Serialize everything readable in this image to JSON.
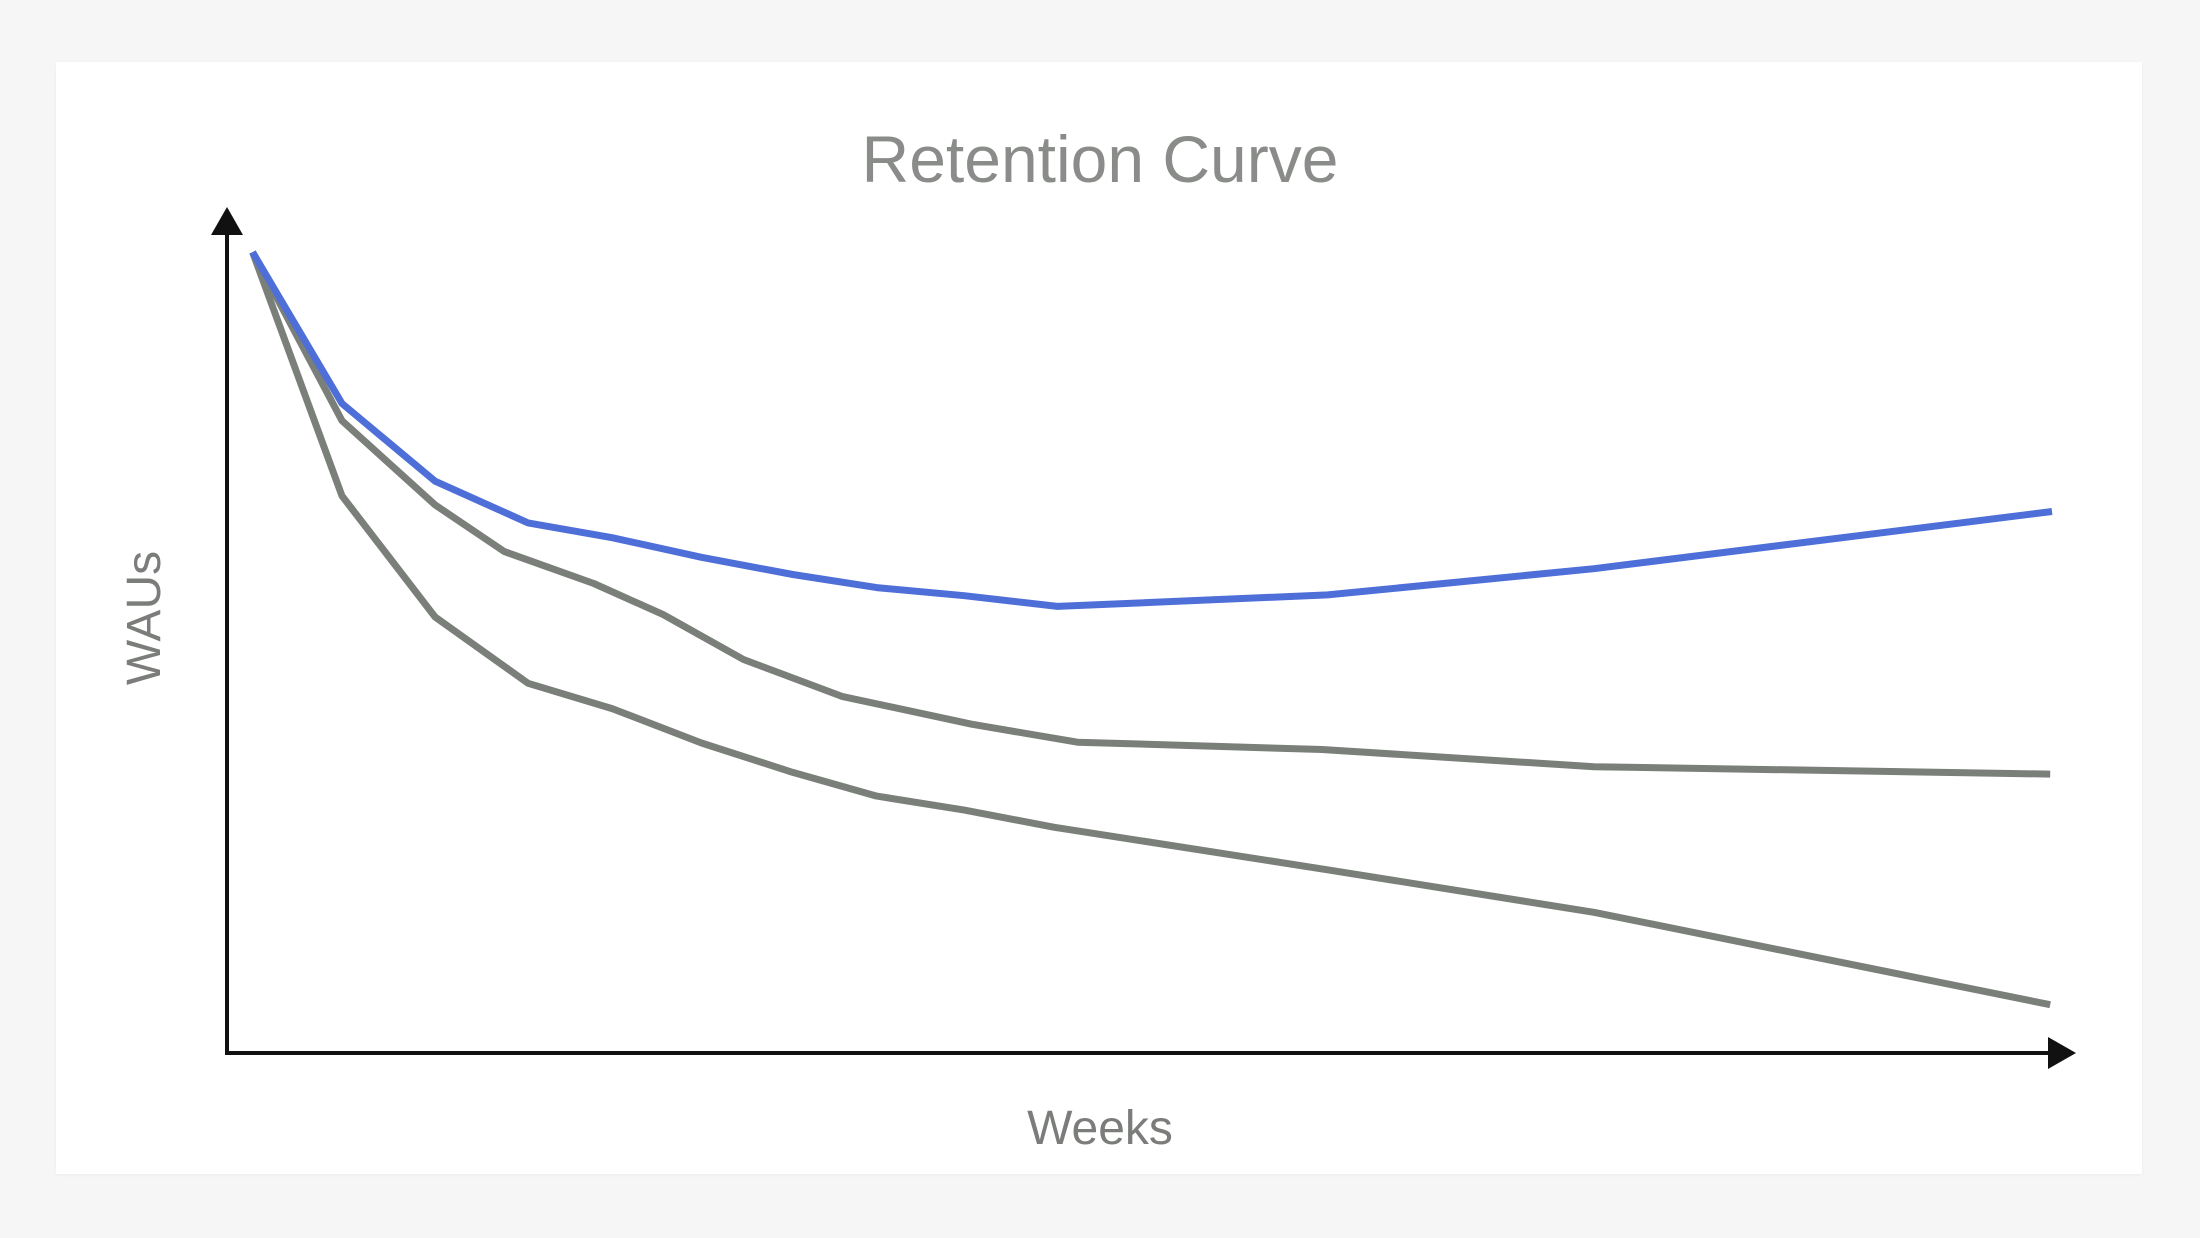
{
  "chart_data": {
    "type": "line",
    "title": "Retention Curve",
    "xlabel": "Weeks",
    "ylabel": "WAUs",
    "xlim": [
      0,
      100
    ],
    "ylim": [
      0,
      100
    ],
    "grid": false,
    "legend": "none",
    "axes_style": "arrows",
    "series": [
      {
        "color": "#4f6fd8",
        "x": [
          1.4,
          6.3,
          11.4,
          16.5,
          21.1,
          26.0,
          31.0,
          35.6,
          40.4,
          45.5,
          60.3,
          74.9,
          100
        ],
        "y": [
          97.9,
          79.4,
          69.9,
          64.8,
          63.0,
          60.6,
          58.5,
          56.9,
          55.9,
          54.6,
          56.0,
          59.2,
          66.2
        ]
      },
      {
        "color": "#7b7f7a",
        "x": [
          1.4,
          6.3,
          11.4,
          15.2,
          20.1,
          23.9,
          28.3,
          33.7,
          40.8,
          46.6,
          60.0,
          74.9,
          99.9
        ],
        "y": [
          97.9,
          77.3,
          67.0,
          61.3,
          57.4,
          53.6,
          48.1,
          43.6,
          40.2,
          38.0,
          37.1,
          35.0,
          34.1
        ]
      },
      {
        "color": "#7b7f7a",
        "x": [
          1.4,
          6.3,
          11.4,
          16.5,
          21.1,
          26.0,
          31.0,
          35.6,
          40.4,
          45.3,
          60.3,
          74.9,
          99.9
        ],
        "y": [
          97.9,
          68.1,
          53.3,
          45.2,
          42.1,
          37.9,
          34.3,
          31.4,
          29.7,
          27.6,
          22.4,
          17.2,
          5.9
        ]
      }
    ]
  }
}
